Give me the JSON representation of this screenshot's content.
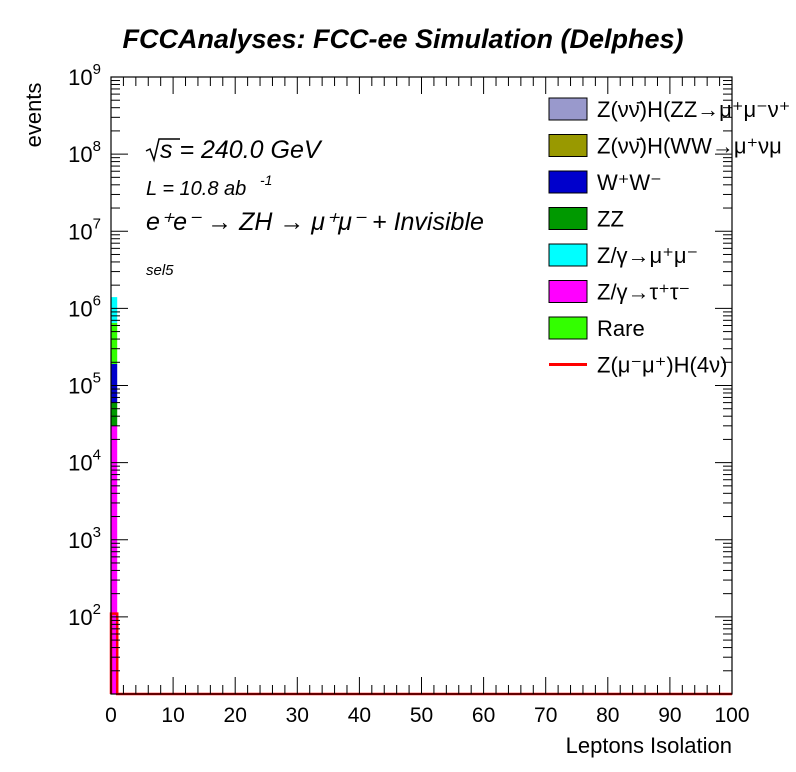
{
  "chart_data": {
    "type": "bar",
    "title": "FCCAnalyses: FCC-ee Simulation (Delphes)",
    "xlabel": "Leptons Isolation",
    "ylabel": "events",
    "xlim": [
      0,
      100
    ],
    "ylim": [
      10,
      1000000000
    ],
    "log_y": true,
    "x_ticks": [
      "0",
      "10",
      "20",
      "30",
      "40",
      "50",
      "60",
      "70",
      "80",
      "90",
      "100"
    ],
    "y_ticks": [
      {
        "value": 100,
        "base": "10",
        "exp": "2"
      },
      {
        "value": 1000,
        "base": "10",
        "exp": "3"
      },
      {
        "value": 10000,
        "base": "10",
        "exp": "4"
      },
      {
        "value": 100000,
        "base": "10",
        "exp": "5"
      },
      {
        "value": 1000000,
        "base": "10",
        "exp": "6"
      },
      {
        "value": 10000000,
        "base": "10",
        "exp": "7"
      },
      {
        "value": 100000000,
        "base": "10",
        "exp": "8"
      },
      {
        "value": 1000000000,
        "base": "10",
        "exp": "9"
      }
    ],
    "annotations": {
      "sqrt_s": "s = 240.0 GeV",
      "lumi": "L = 10.8 ab",
      "lumi_exp": "-1",
      "process": "e⁺e⁻ → ZH → μ⁺μ⁻ + Invisible",
      "selection": "sel5"
    },
    "stack": {
      "bin": [
        0,
        1
      ],
      "layers": [
        {
          "name": "Z/γ→τ⁺τ⁻",
          "color": "#ff00ff",
          "top": 30000
        },
        {
          "name": "ZZ",
          "color": "#009900",
          "top": 60000
        },
        {
          "name": "W⁺W⁻",
          "color": "#0000cc",
          "top": 190000
        },
        {
          "name": "Rare",
          "color": "#33ff00",
          "top": 650000
        },
        {
          "name": "Z/γ→μ⁺μ⁻",
          "color": "#00ffff",
          "top": 1400000
        }
      ],
      "signal": {
        "name": "Z(μ⁻μ⁺)H(4ν)",
        "color": "#ff0000",
        "value": 110
      }
    },
    "legend": {
      "placement": "top-right",
      "entries": [
        {
          "label": "Z(νν̄)H(ZZ→μ⁺μ⁻ν⁺",
          "color": "#9999cc",
          "kind": "box"
        },
        {
          "label": "Z(νν̄)H(WW→μ⁺νμ",
          "color": "#999900",
          "kind": "box"
        },
        {
          "label": "W⁺W⁻",
          "color": "#0000cc",
          "kind": "box"
        },
        {
          "label": "ZZ",
          "color": "#009900",
          "kind": "box"
        },
        {
          "label": "Z/γ→μ⁺μ⁻",
          "color": "#00ffff",
          "kind": "box"
        },
        {
          "label": "Z/γ→τ⁺τ⁻",
          "color": "#ff00ff",
          "kind": "box"
        },
        {
          "label": "Rare",
          "color": "#33ff00",
          "kind": "box"
        },
        {
          "label": "Z(μ⁻μ⁺)H(4ν)",
          "color": "#ff0000",
          "kind": "line"
        }
      ]
    }
  }
}
